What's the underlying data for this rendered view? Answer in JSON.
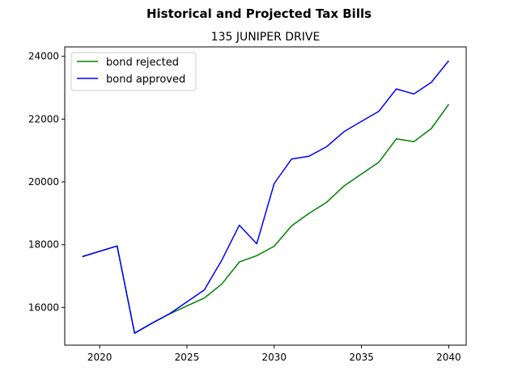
{
  "chart_data": {
    "type": "line",
    "suptitle": "Historical and Projected Tax Bills",
    "title": "135 JUNIPER DRIVE",
    "xlabel": "",
    "ylabel": "",
    "xlim": [
      2018.0,
      2041.0
    ],
    "ylim": [
      14800,
      24300
    ],
    "xticks": [
      2020,
      2025,
      2030,
      2035,
      2040
    ],
    "yticks": [
      16000,
      18000,
      20000,
      22000,
      24000
    ],
    "grid": false,
    "legend_position": "upper left",
    "x": [
      2019,
      2020,
      2021,
      2022,
      2023,
      2024,
      2025,
      2026,
      2027,
      2028,
      2029,
      2030,
      2031,
      2032,
      2033,
      2034,
      2035,
      2036,
      2037,
      2038,
      2039,
      2040
    ],
    "series": [
      {
        "name": "bond rejected",
        "color": "#008000",
        "values": [
          17620,
          17790,
          17960,
          15180,
          15500,
          15790,
          16050,
          16300,
          16750,
          17450,
          17650,
          17950,
          18600,
          19000,
          19350,
          19870,
          20250,
          20630,
          21370,
          21280,
          21700,
          22470
        ]
      },
      {
        "name": "bond approved",
        "color": "#0000ff",
        "values": [
          17620,
          17790,
          17960,
          15180,
          15500,
          15800,
          16180,
          16560,
          17510,
          18620,
          18030,
          19950,
          20730,
          20820,
          21120,
          21600,
          21930,
          22250,
          22960,
          22800,
          23170,
          23860
        ]
      }
    ]
  }
}
